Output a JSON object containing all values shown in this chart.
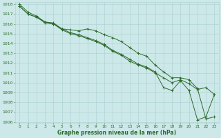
{
  "x": [
    0,
    1,
    2,
    3,
    4,
    5,
    6,
    7,
    8,
    9,
    10,
    11,
    12,
    13,
    14,
    15,
    16,
    17,
    18,
    19,
    20,
    21,
    22,
    23
  ],
  "series1": [
    1017.8,
    1017.0,
    1016.7,
    1016.1,
    1016.0,
    1015.4,
    1015.0,
    1014.8,
    1014.5,
    1014.2,
    1013.8,
    1013.2,
    1012.8,
    1012.2,
    1011.8,
    1011.5,
    1011.0,
    1010.5,
    1010.0,
    1010.3,
    1009.9,
    1009.3,
    1009.5,
    1008.8
  ],
  "series2": [
    1018.0,
    1017.2,
    1016.8,
    1016.2,
    1016.0,
    1015.5,
    1015.4,
    1015.3,
    1015.5,
    1015.3,
    1014.9,
    1014.6,
    1014.2,
    1013.6,
    1013.0,
    1012.7,
    1011.8,
    1011.1,
    1010.5,
    1010.5,
    1010.3,
    1009.4,
    1006.3,
    1006.5
  ],
  "series3": [
    1017.8,
    1017.0,
    1016.7,
    1016.2,
    1016.1,
    1015.5,
    1015.1,
    1014.9,
    1014.6,
    1014.3,
    1013.9,
    1013.3,
    1012.9,
    1012.4,
    1011.9,
    1011.6,
    1011.1,
    1009.5,
    1009.2,
    1010.2,
    1009.2,
    1006.2,
    1006.5,
    1008.8
  ],
  "ylim": [
    1006,
    1018
  ],
  "xlim": [
    -0.5,
    23.5
  ],
  "yticks": [
    1006,
    1007,
    1008,
    1009,
    1010,
    1011,
    1012,
    1013,
    1014,
    1015,
    1016,
    1017,
    1018
  ],
  "xticks": [
    0,
    1,
    2,
    3,
    4,
    5,
    6,
    7,
    8,
    9,
    10,
    11,
    12,
    13,
    14,
    15,
    16,
    17,
    18,
    19,
    20,
    21,
    22,
    23
  ],
  "xlabel": "Graphe pression niveau de la mer (hPa)",
  "line_color": "#2d6a2d",
  "marker": "+",
  "bg_color": "#cce8e8",
  "grid_color": "#aacfcf",
  "tick_color": "#2d6a2d",
  "title_color": "#2d6a2d"
}
